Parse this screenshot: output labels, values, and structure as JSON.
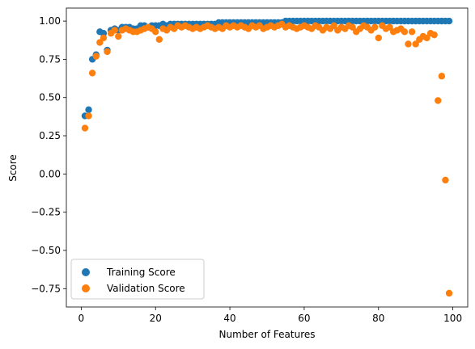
{
  "chart_data": {
    "type": "scatter",
    "title": "",
    "xlabel": "Number of Features",
    "ylabel": "Score",
    "xlim": [
      -4,
      104
    ],
    "ylim": [
      -0.87,
      1.085
    ],
    "xticks": [
      0,
      20,
      40,
      60,
      80,
      100
    ],
    "yticks": [
      -0.75,
      -0.5,
      -0.25,
      0.0,
      0.25,
      0.5,
      0.75,
      1.0
    ],
    "ytick_labels": [
      "−0.75",
      "−0.50",
      "−0.25",
      "0.00",
      "0.25",
      "0.50",
      "0.75",
      "1.00"
    ],
    "grid": false,
    "legend": "lower-left",
    "x": [
      1,
      2,
      3,
      4,
      5,
      6,
      7,
      8,
      9,
      10,
      11,
      12,
      13,
      14,
      15,
      16,
      17,
      18,
      19,
      20,
      21,
      22,
      23,
      24,
      25,
      26,
      27,
      28,
      29,
      30,
      31,
      32,
      33,
      34,
      35,
      36,
      37,
      38,
      39,
      40,
      41,
      42,
      43,
      44,
      45,
      46,
      47,
      48,
      49,
      50,
      51,
      52,
      53,
      54,
      55,
      56,
      57,
      58,
      59,
      60,
      61,
      62,
      63,
      64,
      65,
      66,
      67,
      68,
      69,
      70,
      71,
      72,
      73,
      74,
      75,
      76,
      77,
      78,
      79,
      80,
      81,
      82,
      83,
      84,
      85,
      86,
      87,
      88,
      89,
      90,
      91,
      92,
      93,
      94,
      95,
      96,
      97,
      98,
      99
    ],
    "series": [
      {
        "name": "Training Score",
        "color": "#1f77b4",
        "values": [
          0.38,
          0.42,
          0.75,
          0.78,
          0.93,
          0.92,
          0.81,
          0.94,
          0.95,
          0.94,
          0.96,
          0.96,
          0.96,
          0.95,
          0.95,
          0.97,
          0.97,
          0.96,
          0.97,
          0.97,
          0.97,
          0.98,
          0.97,
          0.98,
          0.98,
          0.98,
          0.98,
          0.98,
          0.98,
          0.98,
          0.98,
          0.98,
          0.98,
          0.98,
          0.98,
          0.98,
          0.99,
          0.99,
          0.99,
          0.99,
          0.99,
          0.99,
          0.99,
          0.99,
          0.99,
          0.99,
          0.99,
          0.99,
          0.99,
          0.99,
          0.99,
          0.99,
          0.99,
          0.99,
          1.0,
          1.0,
          1.0,
          1.0,
          1.0,
          1.0,
          1.0,
          1.0,
          1.0,
          1.0,
          1.0,
          1.0,
          1.0,
          1.0,
          1.0,
          1.0,
          1.0,
          1.0,
          1.0,
          1.0,
          1.0,
          1.0,
          1.0,
          1.0,
          1.0,
          1.0,
          1.0,
          1.0,
          1.0,
          1.0,
          1.0,
          1.0,
          1.0,
          1.0,
          1.0,
          1.0,
          1.0,
          1.0,
          1.0,
          1.0,
          1.0,
          1.0,
          1.0,
          1.0,
          1.0
        ]
      },
      {
        "name": "Validation Score",
        "color": "#ff7f0e",
        "values": [
          0.3,
          0.38,
          0.66,
          0.77,
          0.86,
          0.89,
          0.8,
          0.92,
          0.94,
          0.9,
          0.94,
          0.95,
          0.94,
          0.93,
          0.93,
          0.94,
          0.95,
          0.96,
          0.95,
          0.93,
          0.88,
          0.95,
          0.94,
          0.96,
          0.95,
          0.97,
          0.96,
          0.97,
          0.96,
          0.95,
          0.96,
          0.95,
          0.96,
          0.97,
          0.96,
          0.95,
          0.96,
          0.95,
          0.97,
          0.96,
          0.97,
          0.96,
          0.97,
          0.96,
          0.95,
          0.97,
          0.96,
          0.97,
          0.95,
          0.96,
          0.97,
          0.96,
          0.97,
          0.98,
          0.96,
          0.97,
          0.96,
          0.95,
          0.96,
          0.97,
          0.96,
          0.95,
          0.97,
          0.96,
          0.94,
          0.96,
          0.95,
          0.97,
          0.94,
          0.96,
          0.95,
          0.97,
          0.96,
          0.93,
          0.95,
          0.97,
          0.96,
          0.94,
          0.96,
          0.89,
          0.97,
          0.95,
          0.96,
          0.93,
          0.94,
          0.95,
          0.93,
          0.85,
          0.93,
          0.85,
          0.88,
          0.9,
          0.89,
          0.92,
          0.91,
          0.48,
          0.64,
          -0.04,
          -0.78
        ]
      }
    ]
  }
}
